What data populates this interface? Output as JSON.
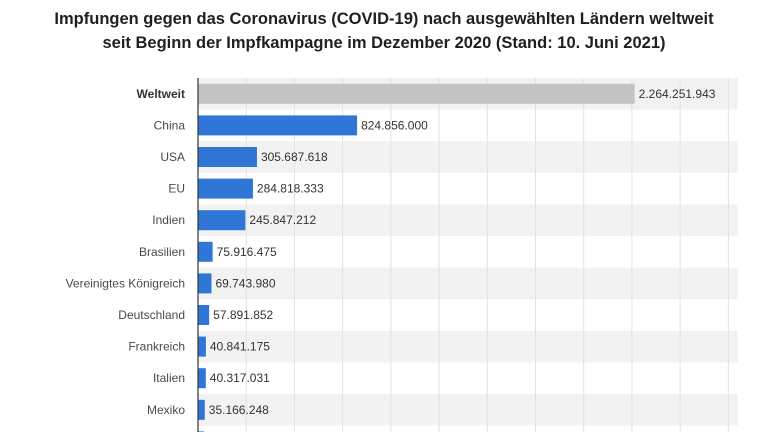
{
  "chart_data": {
    "type": "bar",
    "orientation": "horizontal",
    "title_line1": "Impfungen gegen das Coronavirus (COVID-19) nach ausgewählten Ländern weltweit",
    "title_line2": "seit Beginn der Impfkampagne im Dezember 2020 (Stand: 10. Juni 2021)",
    "categories": [
      "Weltweit",
      "China",
      "USA",
      "EU",
      "Indien",
      "Brasilien",
      "Vereinigtes Königreich",
      "Deutschland",
      "Frankreich",
      "Italien",
      "Mexiko"
    ],
    "values": [
      2264251943,
      824856000,
      305687618,
      284818333,
      245847212,
      75916475,
      69743980,
      57891852,
      40841175,
      40317031,
      35166248
    ],
    "value_labels": [
      "2.264.251.943",
      "824.856.000",
      "305.687.618",
      "284.818.333",
      "245.847.212",
      "75.916.475",
      "69.743.980",
      "57.891.852",
      "40.841.175",
      "40.317.031",
      "35.166.248"
    ],
    "highlight_category": "Weltweit",
    "xlim": [
      0,
      2800000000
    ],
    "grid": true,
    "colors": {
      "bar": "#2f76d6",
      "highlight_bar": "#c4c4c4",
      "row_alt": "#f2f2f2",
      "grid": "#e2e2e2",
      "axis": "#333333"
    }
  }
}
